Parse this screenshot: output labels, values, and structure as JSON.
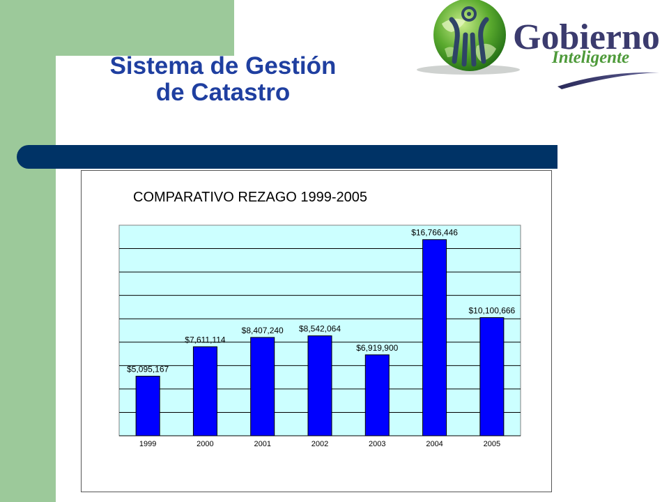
{
  "slide": {
    "title_line1": "Sistema de Gestión",
    "title_line2": "de Catastro"
  },
  "logo": {
    "word1": "Gobierno",
    "word2": "Inteligente",
    "icon": "globe-icon"
  },
  "colors": {
    "band_green": "#9cc99a",
    "bar_navy": "#003366",
    "title_blue": "#1f3fa0",
    "plot_bg": "#ccffff",
    "bar_fill": "#0000ff"
  },
  "chart_data": {
    "type": "bar",
    "title": "COMPARATIVO REZAGO 1999-2005",
    "categories": [
      "1999",
      "2000",
      "2001",
      "2002",
      "2003",
      "2004",
      "2005"
    ],
    "values": [
      5095167,
      7611114,
      8407240,
      8542064,
      6919900,
      16766446,
      10100666
    ],
    "data_labels": [
      "$5,095,167",
      "$7,611,114",
      "$8,407,240",
      "$8,542,064",
      "$6,919,900",
      "$16,766,446",
      "$10,100,666"
    ],
    "xlabel": "",
    "ylabel": "",
    "ylim": [
      0,
      18000000
    ],
    "grid": true
  }
}
